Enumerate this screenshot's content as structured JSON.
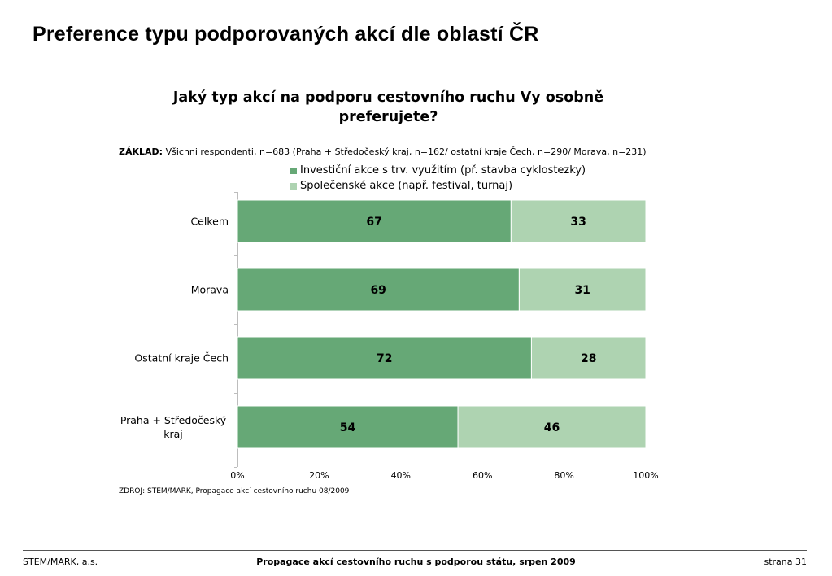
{
  "page": {
    "title": "Preference typu podporovaných akcí dle oblastí ČR",
    "question": "Jaký typ akcí na podporu cestovního ruchu Vy osobně preferujete?",
    "basis_label": "ZÁKLAD:",
    "basis_text": "Všichni respondenti, n=683 (Praha + Středočeský kraj, n=162/ ostatní kraje Čech, n=290/ Morava, n=231)",
    "source": "ZDROJ: STEM/MARK, Propagace akcí cestovního ruchu 08/2009"
  },
  "footer": {
    "left": "STEM/MARK, a.s.",
    "center": "Propagace akcí cestovního ruchu s podporou státu, srpen 2009",
    "right": "strana 31"
  },
  "chart_data": {
    "type": "bar",
    "orientation": "horizontal",
    "stacked": true,
    "categories": [
      "Celkem",
      "Morava",
      "Ostatní kraje Čech",
      "Praha + Středočeský kraj"
    ],
    "category_lines": [
      [
        "Celkem"
      ],
      [
        "Morava"
      ],
      [
        "Ostatní kraje Čech"
      ],
      [
        "Praha + Středočeský",
        "kraj"
      ]
    ],
    "series": [
      {
        "name": "Investiční akce s trv. využitím (př. stavba cyklostezky)",
        "values": [
          67,
          69,
          72,
          54
        ],
        "color": "#66a876"
      },
      {
        "name": "Společenské akce (např. festival, turnaj)",
        "values": [
          33,
          31,
          28,
          46
        ],
        "color": "#aed3b1"
      }
    ],
    "xlim": [
      0,
      100
    ],
    "xticks": [
      "0%",
      "20%",
      "40%",
      "60%",
      "80%",
      "100%"
    ],
    "legend_position": "top",
    "grid": false
  }
}
